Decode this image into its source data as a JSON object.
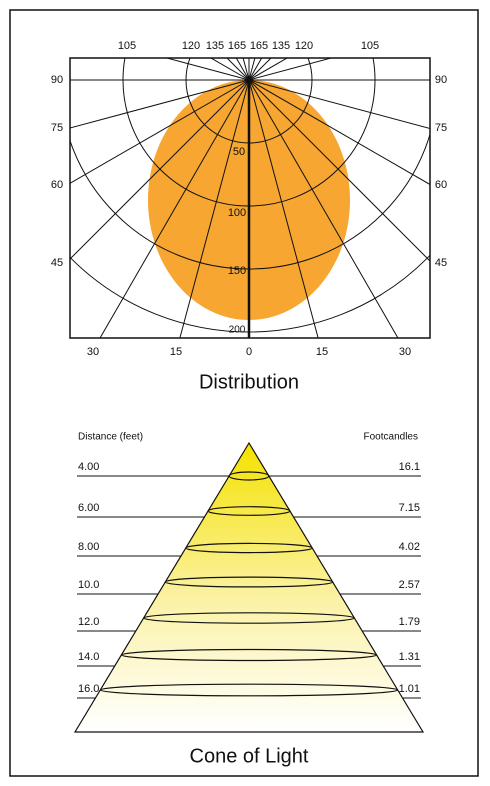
{
  "distribution": {
    "title": "Distribution",
    "top_angle_labels": [
      "105",
      "120",
      "135",
      "165",
      "165",
      "135",
      "120",
      "105"
    ],
    "left_angle_labels": [
      "90",
      "75",
      "60",
      "45"
    ],
    "right_angle_labels": [
      "90",
      "75",
      "60",
      "45"
    ],
    "bottom_angle_labels": [
      "30",
      "15",
      "0",
      "15",
      "30"
    ],
    "intensity_labels": [
      "50",
      "100",
      "150",
      "200"
    ]
  },
  "cone": {
    "title": "Cone of Light",
    "distance_header": "Distance (feet)",
    "footcandles_header": "Footcandles",
    "rows": [
      {
        "distance": "4.00",
        "footcandles": "16.1"
      },
      {
        "distance": "6.00",
        "footcandles": "7.15"
      },
      {
        "distance": "8.00",
        "footcandles": "4.02"
      },
      {
        "distance": "10.0",
        "footcandles": "2.57"
      },
      {
        "distance": "12.0",
        "footcandles": "1.79"
      },
      {
        "distance": "14.0",
        "footcandles": "1.31"
      },
      {
        "distance": "16.0",
        "footcandles": "1.01"
      }
    ]
  }
}
